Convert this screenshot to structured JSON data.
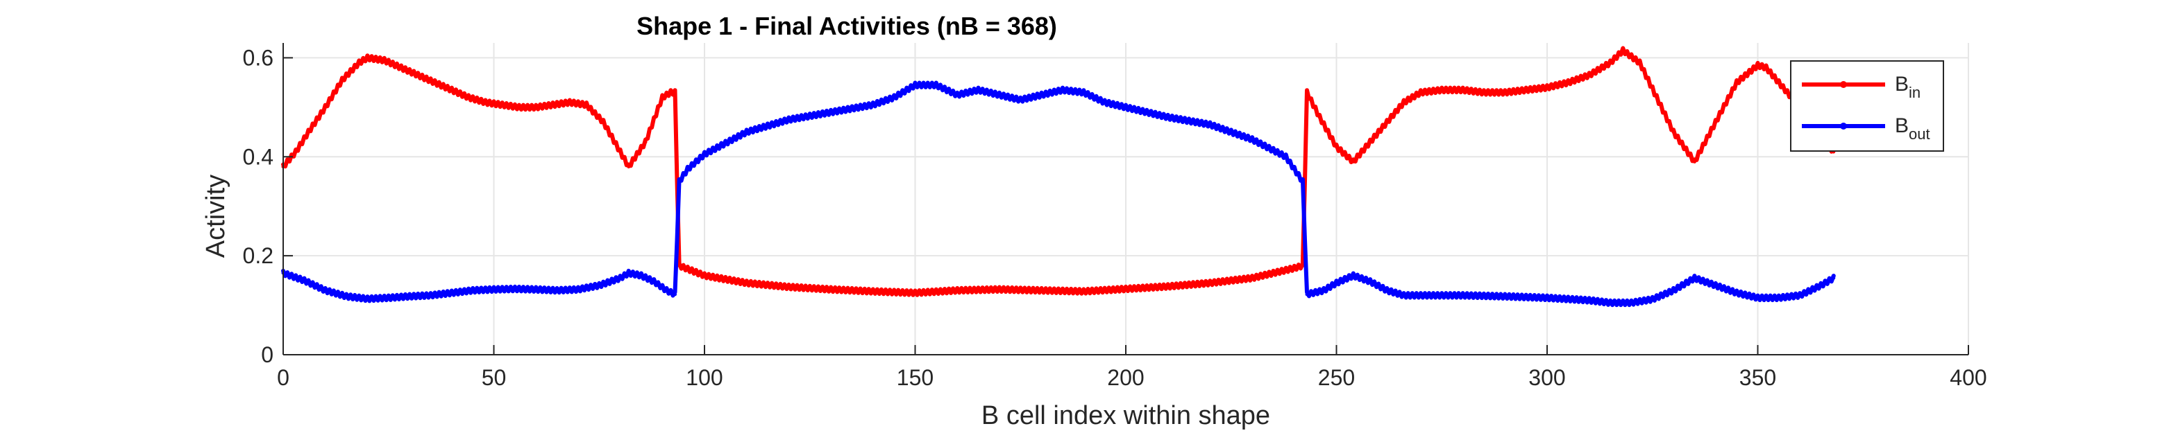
{
  "chart_data": {
    "type": "line",
    "title": "Shape 1 - Final Activities (nB = 368)",
    "xlabel": "B cell index within shape",
    "ylabel": "Activity",
    "xlim": [
      0,
      400
    ],
    "ylim": [
      0,
      0.63
    ],
    "xticks": [
      0,
      50,
      100,
      150,
      200,
      250,
      300,
      350,
      400
    ],
    "yticks": [
      0,
      0.2,
      0.4,
      0.6
    ],
    "xtick_labels": [
      "0",
      "50",
      "100",
      "150",
      "200",
      "250",
      "300",
      "350",
      "400"
    ],
    "ytick_labels": [
      "0",
      "0.2",
      "0.4",
      "0.6"
    ],
    "grid": true,
    "legend_position": "top-right",
    "series": [
      {
        "name": "B",
        "name_sub": "in",
        "color": "#ff0000",
        "x": [
          0,
          3,
          6,
          10,
          14,
          18,
          20,
          24,
          28,
          32,
          36,
          40,
          44,
          48,
          52,
          56,
          60,
          64,
          68,
          72,
          76,
          80,
          82,
          86,
          90,
          92,
          93,
          94,
          100,
          110,
          120,
          130,
          140,
          150,
          160,
          170,
          180,
          190,
          200,
          210,
          220,
          230,
          240,
          242,
          243,
          246,
          250,
          254,
          258,
          262,
          266,
          270,
          275,
          280,
          285,
          290,
          295,
          300,
          305,
          310,
          315,
          318,
          322,
          326,
          330,
          335,
          340,
          345,
          350,
          352,
          356,
          360,
          364,
          368
        ],
        "y": [
          0.38,
          0.41,
          0.45,
          0.5,
          0.555,
          0.59,
          0.6,
          0.595,
          0.58,
          0.565,
          0.55,
          0.535,
          0.52,
          0.51,
          0.505,
          0.5,
          0.5,
          0.505,
          0.51,
          0.505,
          0.47,
          0.41,
          0.38,
          0.43,
          0.52,
          0.53,
          0.53,
          0.18,
          0.16,
          0.145,
          0.137,
          0.132,
          0.128,
          0.125,
          0.13,
          0.132,
          0.13,
          0.128,
          0.133,
          0.138,
          0.145,
          0.155,
          0.175,
          0.18,
          0.53,
          0.48,
          0.42,
          0.39,
          0.43,
          0.47,
          0.51,
          0.53,
          0.535,
          0.535,
          0.53,
          0.53,
          0.535,
          0.54,
          0.55,
          0.565,
          0.59,
          0.615,
          0.59,
          0.52,
          0.45,
          0.39,
          0.47,
          0.55,
          0.585,
          0.58,
          0.54,
          0.5,
          0.45,
          0.41
        ]
      },
      {
        "name": "B",
        "name_sub": "out",
        "color": "#0000ff",
        "x": [
          0,
          5,
          10,
          15,
          20,
          25,
          30,
          35,
          40,
          45,
          50,
          55,
          60,
          65,
          70,
          75,
          80,
          82,
          85,
          88,
          91,
          93,
          94,
          96,
          100,
          110,
          120,
          130,
          140,
          145,
          150,
          155,
          160,
          165,
          170,
          175,
          180,
          185,
          190,
          195,
          200,
          210,
          220,
          230,
          238,
          242,
          243,
          247,
          250,
          254,
          258,
          262,
          266,
          270,
          280,
          290,
          300,
          310,
          315,
          320,
          325,
          330,
          335,
          340,
          345,
          350,
          355,
          360,
          365,
          368
        ],
        "y": [
          0.165,
          0.15,
          0.13,
          0.118,
          0.113,
          0.115,
          0.118,
          0.12,
          0.125,
          0.13,
          0.132,
          0.133,
          0.132,
          0.13,
          0.132,
          0.14,
          0.155,
          0.165,
          0.16,
          0.148,
          0.13,
          0.122,
          0.35,
          0.375,
          0.405,
          0.45,
          0.475,
          0.49,
          0.505,
          0.52,
          0.545,
          0.545,
          0.525,
          0.535,
          0.525,
          0.515,
          0.525,
          0.535,
          0.53,
          0.51,
          0.5,
          0.48,
          0.465,
          0.435,
          0.4,
          0.35,
          0.122,
          0.13,
          0.145,
          0.16,
          0.148,
          0.13,
          0.12,
          0.12,
          0.12,
          0.118,
          0.115,
          0.11,
          0.105,
          0.105,
          0.112,
          0.13,
          0.155,
          0.14,
          0.125,
          0.115,
          0.115,
          0.12,
          0.14,
          0.155
        ]
      }
    ]
  }
}
